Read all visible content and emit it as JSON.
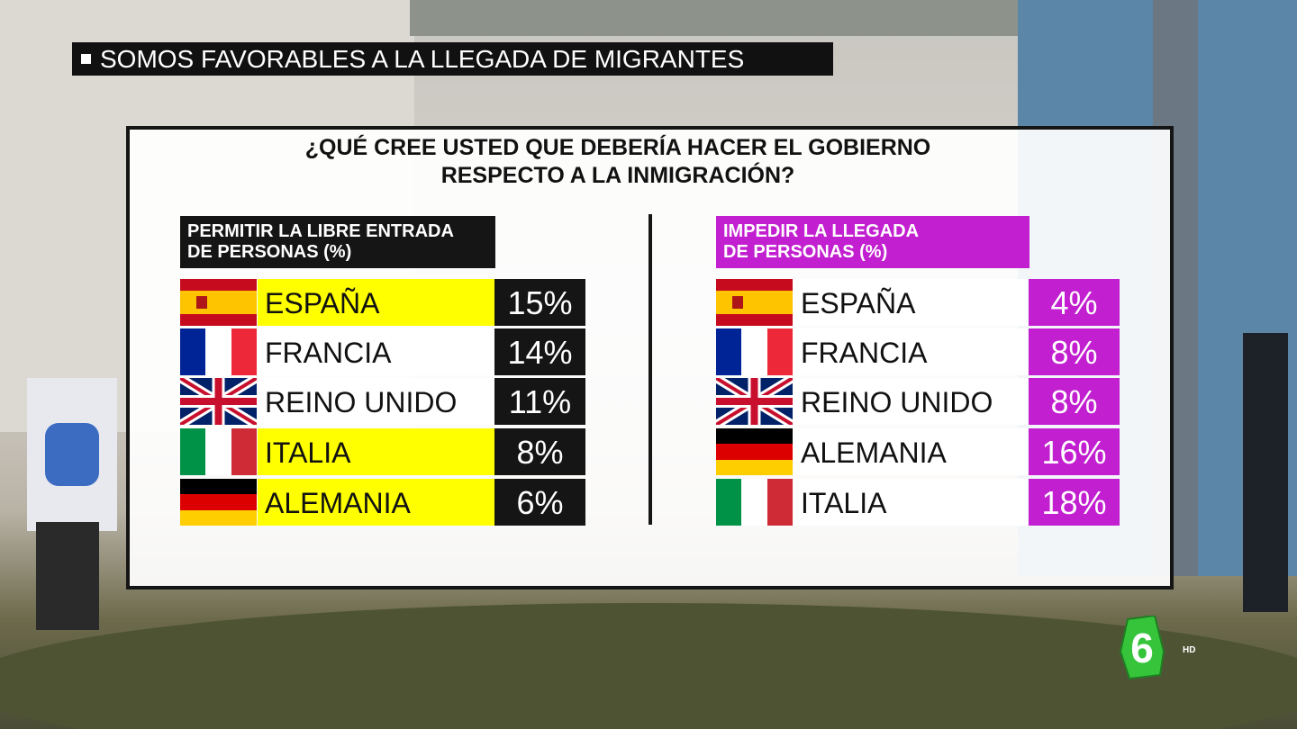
{
  "banner": "SOMOS FAVORABLES A LA LLEGADA DE MIGRANTES",
  "title": {
    "line1": "¿QUÉ CREE USTED QUE DEBERÍA HACER EL GOBIERNO",
    "line2": "RESPECTO A LA INMIGRACIÓN?"
  },
  "left": {
    "header": {
      "line1": "PERMITIR LA LIBRE ENTRADA",
      "line2": "DE PERSONAS (%)"
    },
    "rows": [
      [
        "ESPAÑA",
        "15%"
      ],
      [
        "FRANCIA",
        "14%"
      ],
      [
        "REINO UNIDO",
        "11%"
      ],
      [
        "ITALIA",
        "8%"
      ],
      [
        "ALEMANIA",
        "6%"
      ]
    ]
  },
  "right": {
    "header": {
      "line1": "IMPEDIR LA LLEGADA",
      "line2": "DE PERSONAS (%)"
    },
    "rows": [
      [
        "ESPAÑA",
        "4%"
      ],
      [
        "FRANCIA",
        "8%"
      ],
      [
        "REINO UNIDO",
        "8%"
      ],
      [
        "ALEMANIA",
        "16%"
      ],
      [
        "ITALIA",
        "18%"
      ]
    ]
  },
  "logo": {
    "mark": "6",
    "hd": "HD"
  }
}
